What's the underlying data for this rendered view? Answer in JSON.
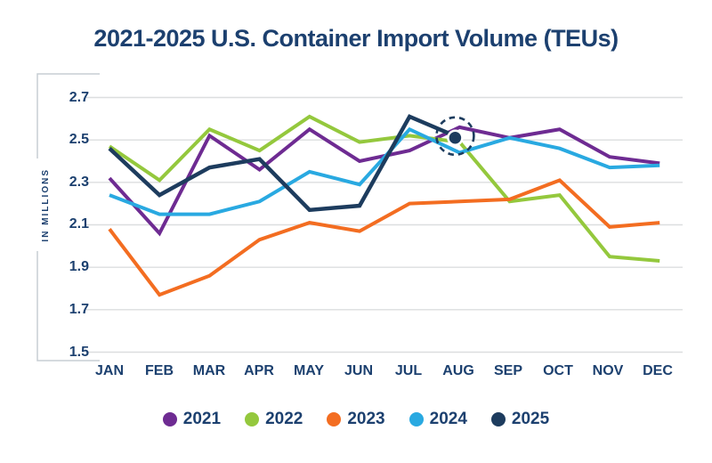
{
  "title": "2021-2025 U.S. Container Import Volume (TEUs)",
  "chart_data": {
    "type": "line",
    "title": "2021-2025 U.S. Container Import Volume (TEUs)",
    "xlabel": "",
    "ylabel": "IN MILLIONS",
    "ylim": [
      1.5,
      2.7
    ],
    "ytick_step": 0.2,
    "yticks": [
      "2.7",
      "2.5",
      "2.3",
      "2.1",
      "1.9",
      "1.7",
      "1.5"
    ],
    "grid": "horizontal",
    "legend_position": "bottom",
    "categories": [
      "JAN",
      "FEB",
      "MAR",
      "APR",
      "MAY",
      "JUN",
      "JUL",
      "AUG",
      "SEP",
      "OCT",
      "NOV",
      "DEC"
    ],
    "series": [
      {
        "name": "2021",
        "color": "#6e2b92",
        "values": [
          2.32,
          2.06,
          2.52,
          2.36,
          2.55,
          2.4,
          2.45,
          2.56,
          2.51,
          2.55,
          2.42,
          2.39
        ]
      },
      {
        "name": "2022",
        "color": "#94c83d",
        "values": [
          2.47,
          2.31,
          2.55,
          2.45,
          2.61,
          2.49,
          2.52,
          2.49,
          2.21,
          2.24,
          1.95,
          1.93
        ]
      },
      {
        "name": "2023",
        "color": "#f36d21",
        "values": [
          2.08,
          1.77,
          1.86,
          2.03,
          2.11,
          2.07,
          2.2,
          2.21,
          2.22,
          2.31,
          2.09,
          2.11
        ]
      },
      {
        "name": "2024",
        "color": "#29a9e1",
        "values": [
          2.24,
          2.15,
          2.15,
          2.21,
          2.35,
          2.29,
          2.55,
          2.44,
          2.51,
          2.46,
          2.37,
          2.38
        ]
      },
      {
        "name": "2025",
        "color": "#1d3c5e",
        "values": [
          2.46,
          2.24,
          2.37,
          2.41,
          2.17,
          2.19,
          2.61,
          2.51
        ]
      }
    ],
    "highlight": {
      "series": "2025",
      "category": "AUG",
      "value": 2.51,
      "style": "dashed-circle-around-endpoint-dot"
    }
  },
  "colors": {
    "text": "#1c406f",
    "gridline": "#dcdedf",
    "bracket": "#c7cdd4",
    "background": "#ffffff"
  }
}
